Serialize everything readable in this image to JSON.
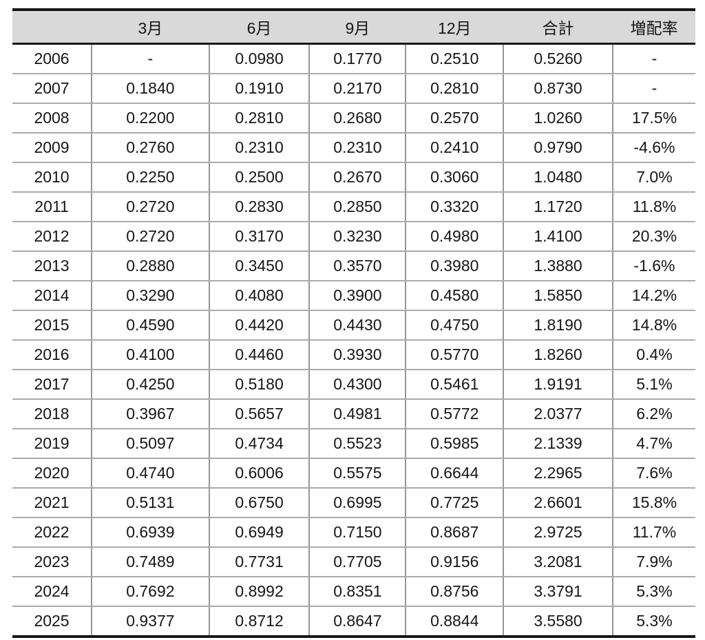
{
  "chart_data": {
    "type": "table",
    "title": "",
    "columns": [
      "",
      "3月",
      "6月",
      "9月",
      "12月",
      "合計",
      "増配率"
    ],
    "rows": [
      [
        "2006",
        "-",
        "0.0980",
        "0.1770",
        "0.2510",
        "0.5260",
        "-"
      ],
      [
        "2007",
        "0.1840",
        "0.1910",
        "0.2170",
        "0.2810",
        "0.8730",
        "-"
      ],
      [
        "2008",
        "0.2200",
        "0.2810",
        "0.2680",
        "0.2570",
        "1.0260",
        "17.5%"
      ],
      [
        "2009",
        "0.2760",
        "0.2310",
        "0.2310",
        "0.2410",
        "0.9790",
        "-4.6%"
      ],
      [
        "2010",
        "0.2250",
        "0.2500",
        "0.2670",
        "0.3060",
        "1.0480",
        "7.0%"
      ],
      [
        "2011",
        "0.2720",
        "0.2830",
        "0.2850",
        "0.3320",
        "1.1720",
        "11.8%"
      ],
      [
        "2012",
        "0.2720",
        "0.3170",
        "0.3230",
        "0.4980",
        "1.4100",
        "20.3%"
      ],
      [
        "2013",
        "0.2880",
        "0.3450",
        "0.3570",
        "0.3980",
        "1.3880",
        "-1.6%"
      ],
      [
        "2014",
        "0.3290",
        "0.4080",
        "0.3900",
        "0.4580",
        "1.5850",
        "14.2%"
      ],
      [
        "2015",
        "0.4590",
        "0.4420",
        "0.4430",
        "0.4750",
        "1.8190",
        "14.8%"
      ],
      [
        "2016",
        "0.4100",
        "0.4460",
        "0.3930",
        "0.5770",
        "1.8260",
        "0.4%"
      ],
      [
        "2017",
        "0.4250",
        "0.5180",
        "0.4300",
        "0.5461",
        "1.9191",
        "5.1%"
      ],
      [
        "2018",
        "0.3967",
        "0.5657",
        "0.4981",
        "0.5772",
        "2.0377",
        "6.2%"
      ],
      [
        "2019",
        "0.5097",
        "0.4734",
        "0.5523",
        "0.5985",
        "2.1339",
        "4.7%"
      ],
      [
        "2020",
        "0.4740",
        "0.6006",
        "0.5575",
        "0.6644",
        "2.2965",
        "7.6%"
      ],
      [
        "2021",
        "0.5131",
        "0.6750",
        "0.6995",
        "0.7725",
        "2.6601",
        "15.8%"
      ],
      [
        "2022",
        "0.6939",
        "0.6949",
        "0.7150",
        "0.8687",
        "2.9725",
        "11.7%"
      ],
      [
        "2023",
        "0.7489",
        "0.7731",
        "0.7705",
        "0.9156",
        "3.2081",
        "7.9%"
      ],
      [
        "2024",
        "0.7692",
        "0.8992",
        "0.8351",
        "0.8756",
        "3.3791",
        "5.3%"
      ],
      [
        "2025",
        "0.9377",
        "0.8712",
        "0.8647",
        "0.8844",
        "3.5580",
        "5.3%"
      ]
    ],
    "colors": {
      "header_bg": "#d9d9d9",
      "heavy_rule": "#161616",
      "row_rule": "#aaaaaa",
      "column_rule": "#969696",
      "text": "#161616"
    },
    "layout": {
      "header_vertical_dividers": false,
      "outer_left_right_borders": false
    }
  }
}
